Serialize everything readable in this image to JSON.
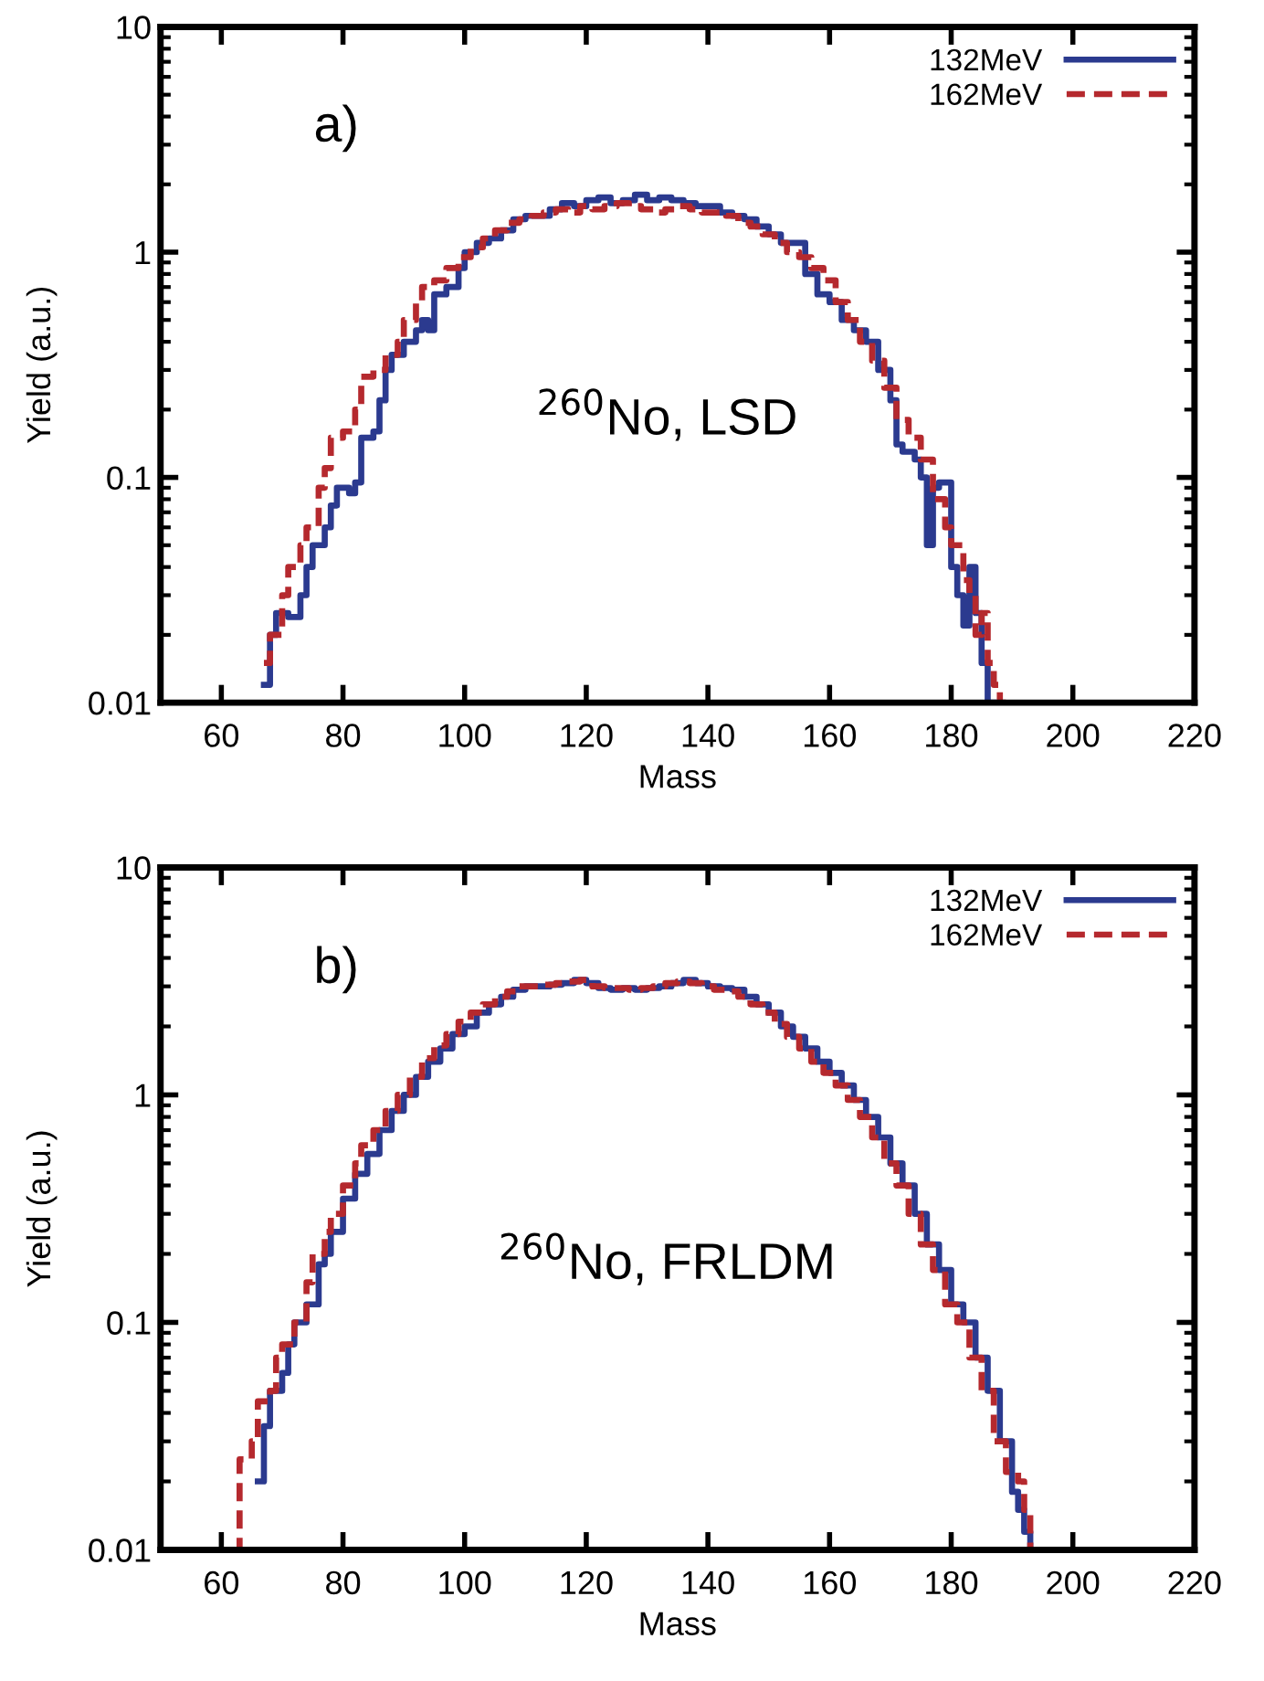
{
  "chart_data": [
    {
      "type": "step",
      "xlabel": "Mass",
      "ylabel": "Yield (a.u.)",
      "xlim": [
        50,
        220
      ],
      "xticks": [
        60,
        80,
        100,
        120,
        140,
        160,
        180,
        200,
        220
      ],
      "ylim": [
        0.01,
        10
      ],
      "yticks": [
        0.01,
        0.1,
        1,
        10
      ],
      "log": true,
      "grid": false,
      "legend": "top right",
      "annotations": [
        "a)",
        "$^{260}$No, LSD"
      ],
      "series": [
        {
          "name": "132MeV",
          "color": "#2b3a8f",
          "line_style": "solid",
          "x": [
            67,
            68,
            69,
            71,
            73,
            74,
            75,
            77,
            78,
            79,
            81,
            82,
            83,
            85,
            86,
            87,
            88,
            90,
            92,
            93,
            94,
            95,
            97,
            99,
            100,
            102,
            104,
            106,
            108,
            110,
            112,
            114,
            116,
            118,
            120,
            122,
            124,
            126,
            128,
            130,
            132,
            134,
            136,
            138,
            140,
            142,
            144,
            146,
            148,
            150,
            152,
            154,
            156,
            158,
            160,
            162,
            164,
            166,
            168,
            170,
            171,
            172,
            174,
            175,
            176,
            177,
            178,
            180,
            181,
            182,
            183,
            184,
            185,
            186,
            187
          ],
          "values": [
            0.012,
            0.02,
            0.025,
            0.024,
            0.03,
            0.04,
            0.05,
            0.06,
            0.075,
            0.09,
            0.085,
            0.095,
            0.15,
            0.16,
            0.22,
            0.3,
            0.35,
            0.4,
            0.45,
            0.5,
            0.45,
            0.65,
            0.7,
            0.85,
            1.0,
            1.1,
            1.15,
            1.25,
            1.4,
            1.45,
            1.45,
            1.55,
            1.65,
            1.6,
            1.7,
            1.75,
            1.65,
            1.7,
            1.8,
            1.7,
            1.75,
            1.7,
            1.65,
            1.6,
            1.6,
            1.5,
            1.45,
            1.4,
            1.3,
            1.2,
            1.1,
            1.1,
            0.8,
            0.65,
            0.6,
            0.5,
            0.45,
            0.4,
            0.3,
            0.22,
            0.14,
            0.13,
            0.12,
            0.1,
            0.05,
            0.09,
            0.095,
            0.04,
            0.03,
            0.022,
            0.04,
            0.025,
            0.015,
            0.01,
            0.01
          ]
        },
        {
          "name": "162MeV",
          "color": "#b5292e",
          "line_style": "dashed",
          "x": [
            67,
            68,
            70,
            71,
            73,
            74,
            76,
            77,
            78,
            80,
            82,
            83,
            85,
            87,
            89,
            90,
            92,
            93,
            95,
            97,
            99,
            101,
            103,
            105,
            107,
            109,
            111,
            113,
            115,
            117,
            119,
            121,
            123,
            125,
            127,
            129,
            131,
            133,
            135,
            137,
            139,
            141,
            143,
            145,
            147,
            149,
            151,
            153,
            155,
            157,
            159,
            161,
            163,
            165,
            167,
            169,
            171,
            173,
            175,
            177,
            179,
            180,
            182,
            183,
            184,
            185,
            186,
            187,
            188,
            189
          ],
          "values": [
            0.015,
            0.02,
            0.03,
            0.04,
            0.05,
            0.06,
            0.09,
            0.11,
            0.15,
            0.16,
            0.2,
            0.28,
            0.3,
            0.35,
            0.4,
            0.5,
            0.6,
            0.7,
            0.75,
            0.85,
            0.95,
            1.05,
            1.15,
            1.25,
            1.35,
            1.4,
            1.45,
            1.5,
            1.55,
            1.5,
            1.6,
            1.55,
            1.6,
            1.65,
            1.6,
            1.55,
            1.5,
            1.55,
            1.6,
            1.55,
            1.5,
            1.5,
            1.45,
            1.35,
            1.3,
            1.2,
            1.1,
            1.0,
            0.95,
            0.85,
            0.75,
            0.6,
            0.5,
            0.4,
            0.33,
            0.25,
            0.18,
            0.15,
            0.12,
            0.08,
            0.06,
            0.05,
            0.035,
            0.03,
            0.02,
            0.025,
            0.015,
            0.012,
            0.01,
            0.01
          ]
        }
      ]
    },
    {
      "type": "step",
      "xlabel": "Mass",
      "ylabel": "Yield (a.u.)",
      "xlim": [
        50,
        220
      ],
      "xticks": [
        60,
        80,
        100,
        120,
        140,
        160,
        180,
        200,
        220
      ],
      "ylim": [
        0.01,
        10
      ],
      "yticks": [
        0.01,
        0.1,
        1,
        10
      ],
      "log": true,
      "grid": false,
      "legend": "top right",
      "annotations": [
        "b)",
        "$^{260}$No, FRLDM"
      ],
      "series": [
        {
          "name": "132MeV",
          "color": "#2b3a8f",
          "line_style": "solid",
          "x": [
            66,
            67,
            68,
            70,
            71,
            72,
            74,
            76,
            77,
            78,
            80,
            82,
            84,
            86,
            88,
            90,
            92,
            94,
            96,
            98,
            100,
            102,
            104,
            106,
            108,
            110,
            112,
            114,
            116,
            118,
            120,
            122,
            124,
            126,
            128,
            130,
            132,
            134,
            136,
            138,
            140,
            142,
            144,
            146,
            148,
            150,
            152,
            154,
            156,
            158,
            160,
            162,
            164,
            166,
            168,
            170,
            172,
            174,
            176,
            178,
            180,
            182,
            184,
            186,
            188,
            190,
            191,
            192,
            193
          ],
          "values": [
            0.02,
            0.035,
            0.05,
            0.06,
            0.08,
            0.1,
            0.12,
            0.18,
            0.2,
            0.25,
            0.35,
            0.45,
            0.55,
            0.7,
            0.85,
            1.0,
            1.2,
            1.4,
            1.6,
            1.85,
            2.0,
            2.3,
            2.5,
            2.7,
            2.9,
            3.0,
            3.0,
            3.05,
            3.1,
            3.2,
            3.1,
            2.95,
            2.9,
            2.95,
            2.9,
            2.95,
            3.0,
            3.1,
            3.2,
            3.1,
            3.0,
            2.95,
            2.9,
            2.7,
            2.5,
            2.3,
            2.0,
            1.8,
            1.6,
            1.4,
            1.25,
            1.1,
            0.95,
            0.8,
            0.65,
            0.5,
            0.4,
            0.3,
            0.22,
            0.17,
            0.12,
            0.1,
            0.07,
            0.05,
            0.03,
            0.018,
            0.015,
            0.012,
            0.01
          ]
        },
        {
          "name": "162MeV",
          "color": "#b5292e",
          "line_style": "dashed",
          "x": [
            62,
            63,
            65,
            66,
            68,
            69,
            70,
            72,
            74,
            75,
            77,
            78,
            80,
            82,
            83,
            85,
            87,
            89,
            91,
            93,
            95,
            97,
            99,
            101,
            103,
            105,
            107,
            109,
            111,
            113,
            115,
            117,
            119,
            121,
            123,
            125,
            127,
            129,
            131,
            133,
            135,
            137,
            139,
            141,
            143,
            145,
            147,
            149,
            151,
            153,
            155,
            157,
            159,
            161,
            163,
            165,
            167,
            169,
            171,
            173,
            175,
            177,
            179,
            181,
            183,
            185,
            187,
            189,
            191,
            192,
            193,
            194
          ],
          "values": [
            0.01,
            0.025,
            0.03,
            0.045,
            0.05,
            0.07,
            0.08,
            0.1,
            0.15,
            0.2,
            0.25,
            0.3,
            0.4,
            0.5,
            0.6,
            0.7,
            0.85,
            1.0,
            1.2,
            1.45,
            1.65,
            1.85,
            2.1,
            2.3,
            2.5,
            2.7,
            2.85,
            3.0,
            3.0,
            3.05,
            3.1,
            3.15,
            3.2,
            3.0,
            2.95,
            2.95,
            2.9,
            2.95,
            3.0,
            3.1,
            3.15,
            3.1,
            3.0,
            2.9,
            2.85,
            2.7,
            2.5,
            2.3,
            2.05,
            1.8,
            1.6,
            1.4,
            1.25,
            1.1,
            0.95,
            0.8,
            0.65,
            0.5,
            0.4,
            0.3,
            0.22,
            0.17,
            0.12,
            0.1,
            0.07,
            0.05,
            0.03,
            0.022,
            0.02,
            0.015,
            0.01,
            0.01
          ]
        }
      ]
    }
  ]
}
